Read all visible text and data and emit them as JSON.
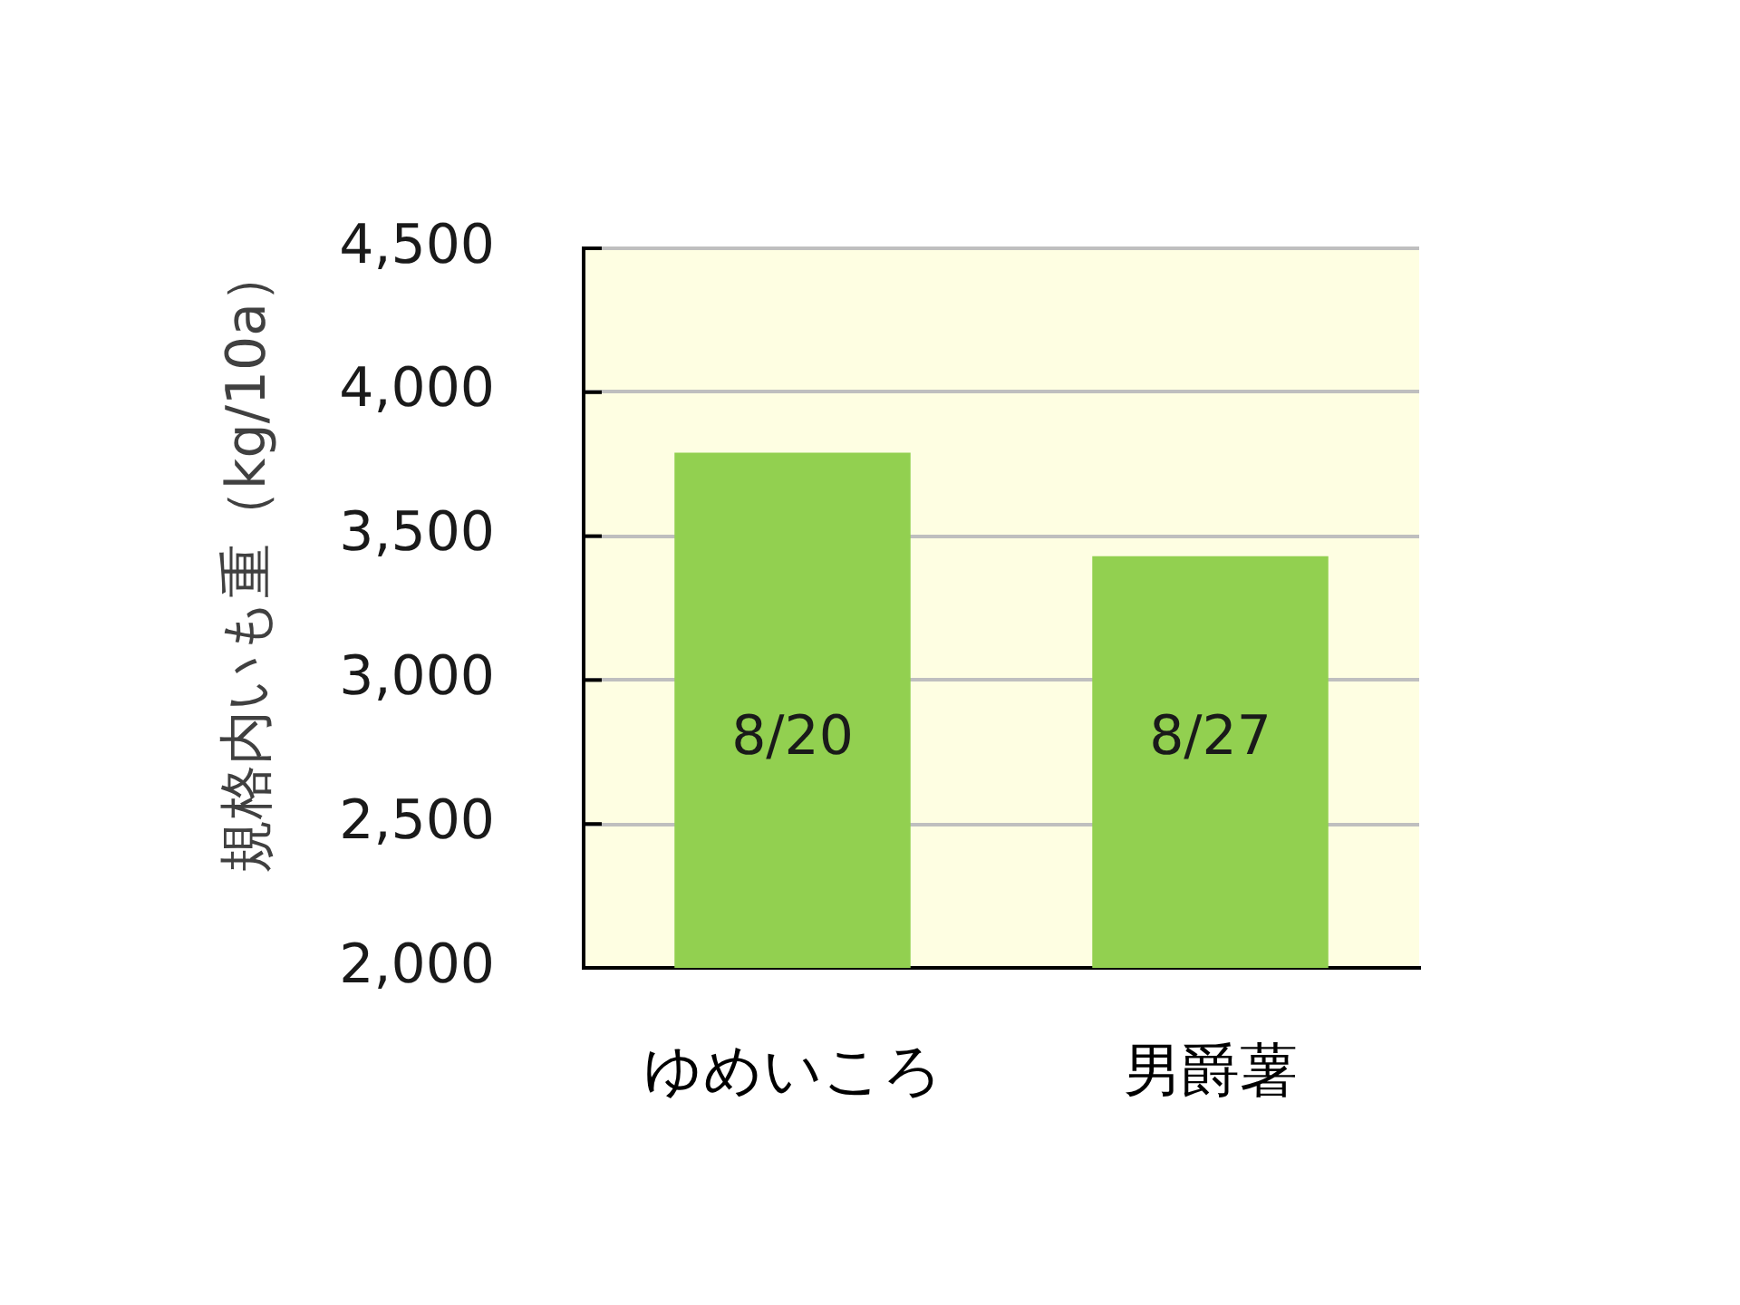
{
  "chart_data": {
    "type": "bar",
    "ylabel": "規格内いも重（kg/10a）",
    "categories": [
      "ゆめいころ",
      "男爵薯"
    ],
    "values": [
      3790,
      3430
    ],
    "color": "#92d050",
    "ylim": [
      2000,
      4500
    ],
    "yticks": [
      {
        "value": 2000,
        "label": "2,000"
      },
      {
        "value": 2500,
        "label": "2,500"
      },
      {
        "value": 3000,
        "label": "3,000"
      },
      {
        "value": 3500,
        "label": "3,500"
      },
      {
        "value": 4000,
        "label": "4,000"
      },
      {
        "value": 4500,
        "label": "4,500"
      }
    ],
    "grid": "y",
    "annotations": [
      "8/20",
      "8/27"
    ]
  }
}
